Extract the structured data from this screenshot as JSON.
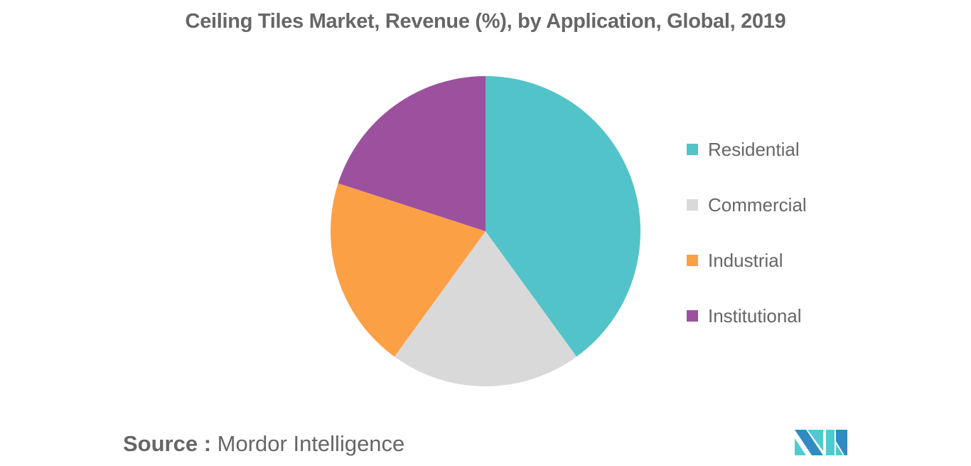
{
  "title": "Ceiling Tiles Market, Revenue (%), by Application, Global, 2019",
  "legend": [
    {
      "label": "Residential",
      "color": "#52C3C8"
    },
    {
      "label": "Commercial",
      "color": "#D9D9D9"
    },
    {
      "label": "Industrial",
      "color": "#FCA046"
    },
    {
      "label": "Institutional",
      "color": "#9B519D"
    }
  ],
  "source": {
    "key": "Source :",
    "value": "Mordor Intelligence"
  },
  "logo": {
    "name": "Mordor Intelligence logo",
    "colors": [
      "#2E8CC3",
      "#4FCBD0"
    ]
  },
  "chart_data": {
    "type": "pie",
    "title": "Ceiling Tiles Market, Revenue (%), by Application, Global, 2019",
    "categories": [
      "Residential",
      "Commercial",
      "Industrial",
      "Institutional"
    ],
    "values": [
      40,
      20,
      20,
      20
    ],
    "colors": [
      "#52C3C8",
      "#D9D9D9",
      "#FCA046",
      "#9B519D"
    ],
    "start_angle": "12 o'clock, clockwise",
    "legend_position": "right",
    "unit": "%"
  }
}
